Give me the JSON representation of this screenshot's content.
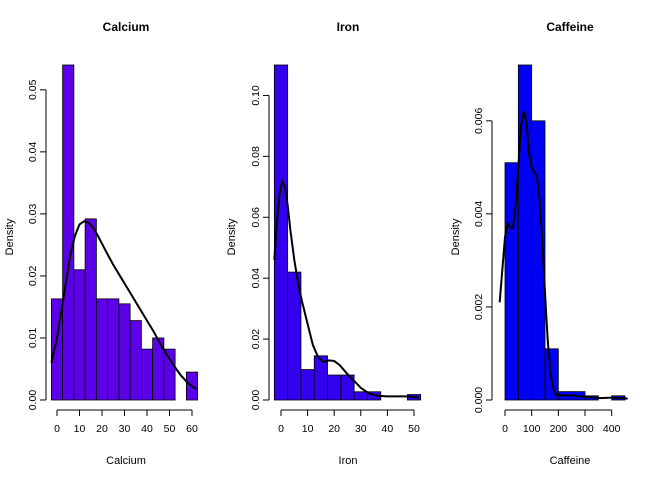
{
  "chart_data": [
    {
      "type": "bar",
      "title": "Calcium",
      "xlabel": "Calcium",
      "ylabel": "Density",
      "xlim": [
        0,
        60
      ],
      "ylim": [
        0,
        0.054
      ],
      "xticks": [
        0,
        10,
        20,
        30,
        40,
        50,
        60
      ],
      "yticks": [
        0.0,
        0.01,
        0.02,
        0.03,
        0.04,
        0.05
      ],
      "ytick_labels": [
        "0.00",
        "0.01",
        "0.02",
        "0.03",
        "0.04",
        "0.05"
      ],
      "bar_color": "#5B00E8",
      "bins": [
        {
          "x0": -2.5,
          "x1": 2.5,
          "value": 0.0163
        },
        {
          "x0": 2.5,
          "x1": 7.5,
          "value": 0.054
        },
        {
          "x0": 7.5,
          "x1": 12.5,
          "value": 0.021
        },
        {
          "x0": 12.5,
          "x1": 17.5,
          "value": 0.0292
        },
        {
          "x0": 17.5,
          "x1": 22.5,
          "value": 0.0163
        },
        {
          "x0": 22.5,
          "x1": 27.5,
          "value": 0.0163
        },
        {
          "x0": 27.5,
          "x1": 32.5,
          "value": 0.0155
        },
        {
          "x0": 32.5,
          "x1": 37.5,
          "value": 0.0128
        },
        {
          "x0": 37.5,
          "x1": 42.5,
          "value": 0.0082
        },
        {
          "x0": 42.5,
          "x1": 47.5,
          "value": 0.01
        },
        {
          "x0": 47.5,
          "x1": 52.5,
          "value": 0.0082
        },
        {
          "x0": 52.5,
          "x1": 57.5,
          "value": 0.0
        },
        {
          "x0": 57.5,
          "x1": 62.5,
          "value": 0.0045
        }
      ],
      "density_curve": {
        "x": [
          -2.5,
          0,
          2,
          4,
          6,
          8,
          10,
          12,
          14,
          16,
          18,
          20,
          22,
          25,
          28,
          31,
          34,
          37,
          40,
          43,
          46,
          49,
          52,
          55,
          58,
          62
        ],
        "y": [
          0.006,
          0.01,
          0.0145,
          0.019,
          0.0235,
          0.0265,
          0.0283,
          0.0288,
          0.0286,
          0.0278,
          0.0266,
          0.0252,
          0.0238,
          0.0218,
          0.02,
          0.0182,
          0.0164,
          0.0146,
          0.0128,
          0.011,
          0.009,
          0.0072,
          0.0055,
          0.004,
          0.0028,
          0.0017
        ]
      }
    },
    {
      "type": "bar",
      "title": "Iron",
      "xlabel": "Iron",
      "ylabel": "Density",
      "xlim": [
        0,
        50
      ],
      "ylim": [
        0,
        0.11
      ],
      "xticks": [
        0,
        10,
        20,
        30,
        40,
        50
      ],
      "yticks": [
        0.0,
        0.02,
        0.04,
        0.06,
        0.08,
        0.1
      ],
      "ytick_labels": [
        "0.00",
        "0.02",
        "0.04",
        "0.06",
        "0.08",
        "0.10"
      ],
      "bar_color": "#3300F0",
      "bins": [
        {
          "x0": -2.5,
          "x1": 2.5,
          "value": 0.11
        },
        {
          "x0": 2.5,
          "x1": 7.5,
          "value": 0.042
        },
        {
          "x0": 7.5,
          "x1": 12.5,
          "value": 0.01
        },
        {
          "x0": 12.5,
          "x1": 17.5,
          "value": 0.0145
        },
        {
          "x0": 17.5,
          "x1": 22.5,
          "value": 0.0082
        },
        {
          "x0": 22.5,
          "x1": 27.5,
          "value": 0.0082
        },
        {
          "x0": 27.5,
          "x1": 32.5,
          "value": 0.0027
        },
        {
          "x0": 32.5,
          "x1": 37.5,
          "value": 0.0027
        },
        {
          "x0": 37.5,
          "x1": 42.5,
          "value": 0.0
        },
        {
          "x0": 42.5,
          "x1": 47.5,
          "value": 0.0
        },
        {
          "x0": 47.5,
          "x1": 52.5,
          "value": 0.0018
        }
      ],
      "density_curve": {
        "x": [
          -2.5,
          -1.5,
          -0.5,
          0.5,
          1.5,
          2.5,
          3.5,
          5,
          6.5,
          8,
          10,
          12,
          14,
          16,
          18,
          20,
          22,
          24,
          26,
          28,
          30,
          33,
          36,
          40,
          44,
          48,
          52
        ],
        "y": [
          0.046,
          0.059,
          0.068,
          0.0718,
          0.07,
          0.064,
          0.056,
          0.046,
          0.038,
          0.032,
          0.025,
          0.018,
          0.014,
          0.0125,
          0.013,
          0.0128,
          0.0115,
          0.0095,
          0.0075,
          0.0058,
          0.004,
          0.0022,
          0.0014,
          0.0012,
          0.0012,
          0.0012,
          0.0008
        ]
      }
    },
    {
      "type": "bar",
      "title": "Caffeine",
      "xlabel": "Caffeine",
      "ylabel": "Density",
      "xlim": [
        0,
        450
      ],
      "ylim": [
        0,
        0.0072
      ],
      "xticks": [
        0,
        100,
        200,
        300,
        400
      ],
      "yticks": [
        0.0,
        0.002,
        0.004,
        0.006
      ],
      "ytick_labels": [
        "0.000",
        "0.002",
        "0.004",
        "0.006"
      ],
      "bar_color": "#0000F5",
      "bins": [
        {
          "x0": 0,
          "x1": 50,
          "value": 0.0051
        },
        {
          "x0": 50,
          "x1": 100,
          "value": 0.0072
        },
        {
          "x0": 100,
          "x1": 150,
          "value": 0.006
        },
        {
          "x0": 150,
          "x1": 200,
          "value": 0.0011
        },
        {
          "x0": 200,
          "x1": 250,
          "value": 0.00018
        },
        {
          "x0": 250,
          "x1": 300,
          "value": 0.00018
        },
        {
          "x0": 300,
          "x1": 350,
          "value": 9e-05
        },
        {
          "x0": 350,
          "x1": 400,
          "value": 0.0
        },
        {
          "x0": 400,
          "x1": 450,
          "value": 9e-05
        }
      ],
      "density_curve": {
        "x": [
          -20,
          -10,
          0,
          10,
          20,
          30,
          40,
          50,
          60,
          70,
          80,
          90,
          100,
          110,
          120,
          130,
          140,
          150,
          160,
          170,
          180,
          190,
          200,
          220,
          250,
          280,
          320,
          360,
          400,
          440,
          460
        ],
        "y": [
          0.0021,
          0.0028,
          0.0035,
          0.0038,
          0.0037,
          0.0037,
          0.0042,
          0.005,
          0.0059,
          0.0062,
          0.006,
          0.0053,
          0.005,
          0.0049,
          0.0048,
          0.0043,
          0.0034,
          0.0023,
          0.0013,
          0.0006,
          0.00025,
          0.00012,
          0.0001,
          0.0001,
          0.0001,
          8e-05,
          6e-05,
          4e-05,
          5e-05,
          4e-05,
          3e-05
        ]
      }
    }
  ]
}
